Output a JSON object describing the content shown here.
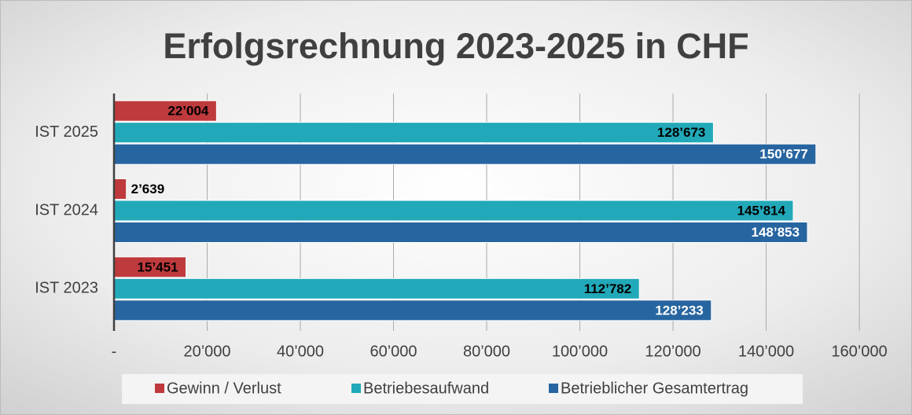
{
  "chart_data": {
    "type": "hbar",
    "title": "Erfolgsrechnung 2023-2025 in CHF",
    "categories": [
      "IST 2023",
      "IST 2024",
      "IST 2025"
    ],
    "series": [
      {
        "name": "Gewinn / Verlust",
        "color": "#be3a3c",
        "values": [
          15451,
          2639,
          22004
        ],
        "value_labels": [
          "15’451",
          "2’639",
          "22’004"
        ]
      },
      {
        "name": "Betriebesaufwand",
        "color": "#22a9b9",
        "values": [
          112782,
          145814,
          128673
        ],
        "value_labels": [
          "112’782",
          "145’814",
          "128’673"
        ]
      },
      {
        "name": "Betrieblicher Gesamtertrag",
        "color": "#2765a0",
        "values": [
          128233,
          148853,
          150677
        ],
        "value_labels": [
          "128’233",
          "148’853",
          "150’677"
        ]
      }
    ],
    "xlim": [
      0,
      160000
    ],
    "xticks": [
      {
        "value": 0,
        "label": "-"
      },
      {
        "value": 20000,
        "label": "20’000"
      },
      {
        "value": 40000,
        "label": "40’000"
      },
      {
        "value": 60000,
        "label": "60’000"
      },
      {
        "value": 80000,
        "label": "80’000"
      },
      {
        "value": 100000,
        "label": "100’000"
      },
      {
        "value": 120000,
        "label": "120’000"
      },
      {
        "value": 140000,
        "label": "140’000"
      },
      {
        "value": 160000,
        "label": "160’000"
      }
    ],
    "grid": true,
    "legend": "bottom"
  }
}
